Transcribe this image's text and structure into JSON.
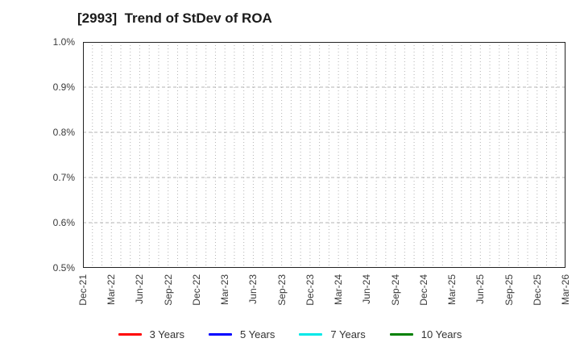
{
  "chart": {
    "title": "[2993]  Trend of StDev of ROA"
  },
  "chart_data": {
    "type": "line",
    "title": "[2993]  Trend of StDev of ROA",
    "xlabel": "",
    "ylabel": "",
    "y_unit": "percent",
    "ylim": [
      0.5,
      1.0
    ],
    "y_tick_labels": [
      "0.5%",
      "0.6%",
      "0.7%",
      "0.8%",
      "0.9%",
      "1.0%"
    ],
    "x_tick_labels": [
      "Dec-21",
      "Mar-22",
      "Jun-22",
      "Sep-22",
      "Dec-22",
      "Mar-23",
      "Jun-23",
      "Sep-23",
      "Dec-23",
      "Mar-24",
      "Jun-24",
      "Sep-24",
      "Dec-24",
      "Mar-25",
      "Jun-25",
      "Sep-25",
      "Dec-25",
      "Mar-26"
    ],
    "x_gridline_interval": "monthly",
    "x_label_interval": "quarterly",
    "grid": true,
    "legend_position": "bottom-center",
    "series": [
      {
        "name": "3 Years",
        "color": "#ff0000",
        "values": []
      },
      {
        "name": "5 Years",
        "color": "#0000ff",
        "values": []
      },
      {
        "name": "7 Years",
        "color": "#00e8e8",
        "values": []
      },
      {
        "name": "10 Years",
        "color": "#008000",
        "values": []
      }
    ],
    "plot_content": "empty - no data lines rendered within axes"
  },
  "colors": {
    "grid": "#b3b3b3",
    "axis_border": "#222222",
    "title_text": "#1a1a1a",
    "tick_text": "#3a3a3a"
  }
}
